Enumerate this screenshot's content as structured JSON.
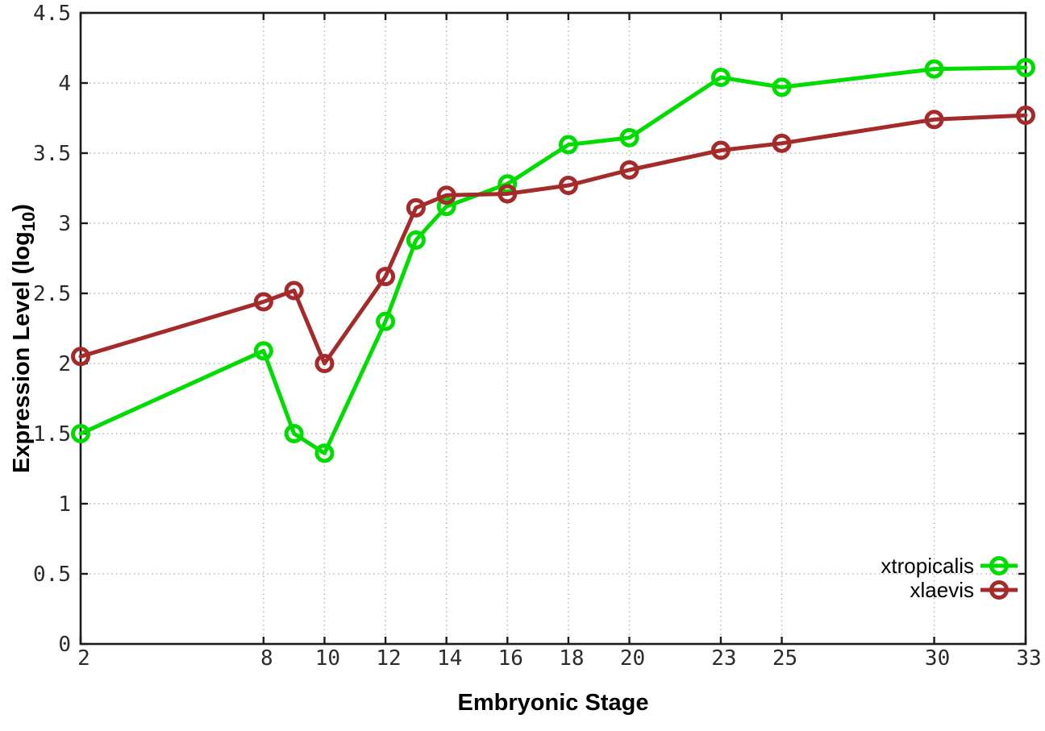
{
  "chart_data": {
    "type": "line",
    "title": "",
    "xlabel": "Embryonic Stage",
    "ylabel": "Expression Level (log10)",
    "ylabel_parts": {
      "main": "Expression Level (log",
      "sub": "10",
      "end": ")"
    },
    "x": [
      2,
      8,
      9,
      10,
      12,
      13,
      14,
      16,
      18,
      20,
      23,
      25,
      30,
      33
    ],
    "series": [
      {
        "name": "xtropicalis",
        "color": "#00dc00",
        "values": [
          1.5,
          2.09,
          1.5,
          1.36,
          2.3,
          2.88,
          3.12,
          3.28,
          3.56,
          3.61,
          4.04,
          3.97,
          4.1,
          4.11
        ]
      },
      {
        "name": "xlaevis",
        "color": "#a52a2a",
        "values": [
          2.05,
          2.44,
          2.52,
          2.0,
          2.62,
          3.11,
          3.2,
          3.21,
          3.27,
          3.38,
          3.52,
          3.57,
          3.74,
          3.77
        ]
      }
    ],
    "xticks": [
      2,
      8,
      10,
      12,
      14,
      16,
      18,
      20,
      23,
      25,
      30,
      33
    ],
    "yticks": [
      0,
      0.5,
      1,
      1.5,
      2,
      2.5,
      3,
      3.5,
      4,
      4.5
    ],
    "xlim": [
      2,
      33
    ],
    "ylim": [
      0,
      4.5
    ],
    "grid": true,
    "grid_style": "dotted",
    "legend_position": "inside-bottom-right",
    "marker": "open-circle",
    "colors": {
      "background": "#ffffff",
      "axis": "#1c1c1c",
      "grid": "#b5b5b5",
      "tick_text": "#2b2b2b"
    }
  }
}
